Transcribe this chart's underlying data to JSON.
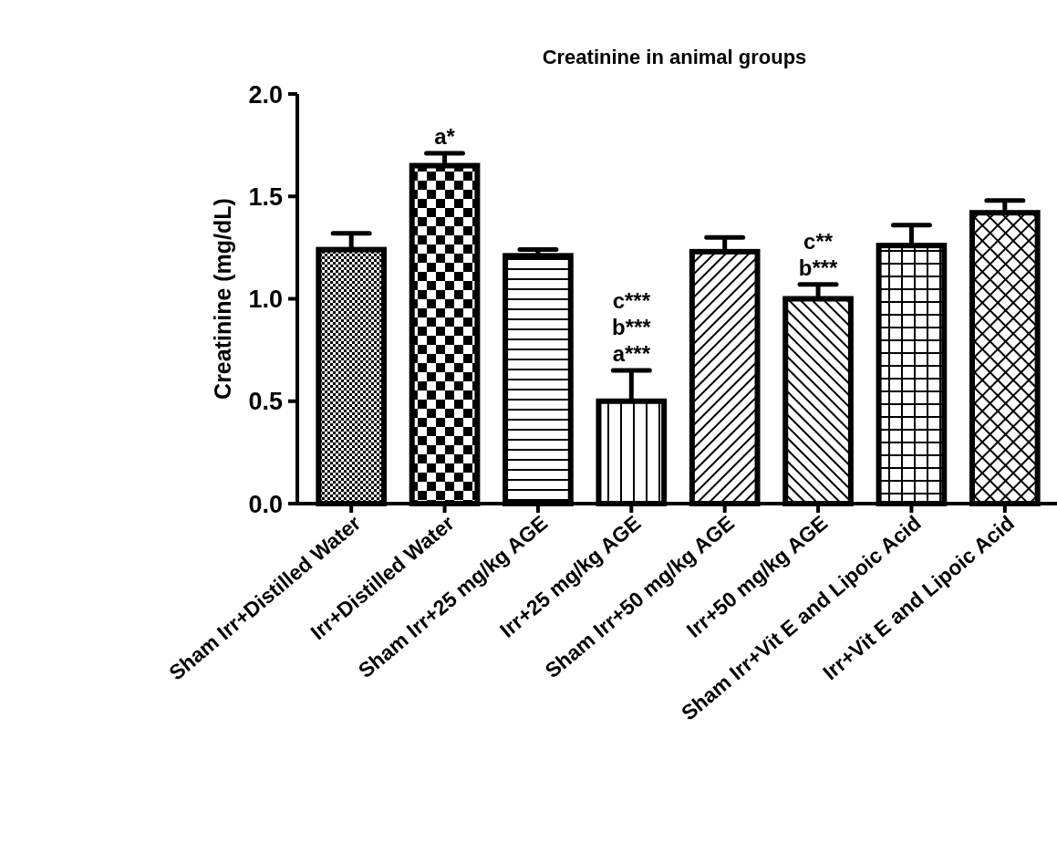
{
  "chart_data": {
    "type": "bar",
    "title": "Creatinine in animal groups",
    "ylabel": "Creatinine (mg/dL)",
    "categories": [
      "Sham Irr+Distilled Water",
      "Irr+Distilled Water",
      "Sham Irr+25 mg/kg AGE",
      "Irr+25 mg/kg AGE",
      "Sham Irr+50 mg/kg AGE",
      "Irr+50 mg/kg AGE",
      "Sham Irr+Vit E and Lipoic Acid",
      "Irr+Vit E and Lipoic Acid"
    ],
    "values": [
      1.24,
      1.65,
      1.21,
      0.5,
      1.23,
      1.0,
      1.26,
      1.42
    ],
    "errors": [
      0.08,
      0.06,
      0.03,
      0.15,
      0.07,
      0.07,
      0.1,
      0.06
    ],
    "color": "#000000",
    "ylim": [
      0,
      2
    ],
    "yticks": [
      {
        "value": 0,
        "label": "0.0"
      },
      {
        "value": 0.5,
        "label": "0.5"
      },
      {
        "value": 1,
        "label": "1.0"
      },
      {
        "value": 1.5,
        "label": "1.5"
      },
      {
        "value": 2,
        "label": "2.0"
      }
    ],
    "grid": false,
    "annotations": [
      {
        "text": "a*",
        "x": "Irr+Distilled Water",
        "y": 1.71
      },
      {
        "text": "a***",
        "x": "Irr+25 mg/kg AGE",
        "y": 0.65
      },
      {
        "text": "b***",
        "x": "Irr+25 mg/kg AGE",
        "y": 0.65
      },
      {
        "text": "c***",
        "x": "Irr+25 mg/kg AGE",
        "y": 0.65
      },
      {
        "text": "b***",
        "x": "Irr+50 mg/kg AGE",
        "y": 1.07
      },
      {
        "text": "c**",
        "x": "Irr+50 mg/kg AGE",
        "y": 1.07
      }
    ]
  }
}
